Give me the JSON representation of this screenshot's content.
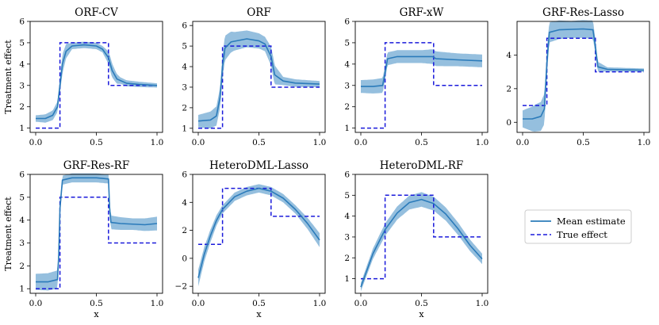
{
  "figure": {
    "legend": {
      "mean_label": "Mean estimate",
      "true_label": "True effect",
      "placement": "center-right"
    },
    "colors": {
      "mean": "#2b7bba",
      "band": "#8fbcdc",
      "true": "#1a1adb"
    }
  },
  "chart_data": [
    {
      "type": "line",
      "title": "ORF-CV",
      "xlabel": "",
      "ylabel": "Treatment effect",
      "xlim": [
        0,
        1
      ],
      "ylim": [
        0.8,
        6.0
      ],
      "xticks": [
        "0.0",
        "0.5",
        "1.0"
      ],
      "yticks": [
        1,
        2,
        3,
        4,
        5,
        6
      ],
      "mean": [
        [
          0,
          1.45
        ],
        [
          0.08,
          1.45
        ],
        [
          0.14,
          1.6
        ],
        [
          0.18,
          2.0
        ],
        [
          0.2,
          3.0
        ],
        [
          0.22,
          4.0
        ],
        [
          0.25,
          4.6
        ],
        [
          0.3,
          4.85
        ],
        [
          0.4,
          4.9
        ],
        [
          0.5,
          4.85
        ],
        [
          0.55,
          4.7
        ],
        [
          0.6,
          4.3
        ],
        [
          0.63,
          3.7
        ],
        [
          0.67,
          3.3
        ],
        [
          0.75,
          3.1
        ],
        [
          0.85,
          3.05
        ],
        [
          1,
          3.0
        ]
      ],
      "band_width": [
        [
          0,
          0.15
        ],
        [
          0.18,
          0.25
        ],
        [
          0.22,
          0.45
        ],
        [
          0.3,
          0.15
        ],
        [
          0.55,
          0.15
        ],
        [
          0.62,
          0.35
        ],
        [
          0.7,
          0.15
        ],
        [
          1,
          0.1
        ]
      ],
      "true_effect": [
        [
          0,
          1
        ],
        [
          0.2,
          1
        ],
        [
          0.2,
          5
        ],
        [
          0.6,
          5
        ],
        [
          0.6,
          3
        ],
        [
          1,
          3
        ]
      ]
    },
    {
      "type": "line",
      "title": "ORF",
      "xlabel": "",
      "ylabel": "",
      "xlim": [
        0,
        1
      ],
      "ylim": [
        0.8,
        6.2
      ],
      "xticks": [
        "0.0",
        "0.5",
        "1.0"
      ],
      "yticks": [
        1,
        2,
        3,
        4,
        5,
        6
      ],
      "mean": [
        [
          0,
          1.35
        ],
        [
          0.1,
          1.4
        ],
        [
          0.15,
          1.6
        ],
        [
          0.18,
          2.5
        ],
        [
          0.2,
          4.0
        ],
        [
          0.22,
          4.9
        ],
        [
          0.27,
          5.2
        ],
        [
          0.4,
          5.35
        ],
        [
          0.5,
          5.25
        ],
        [
          0.55,
          5.1
        ],
        [
          0.6,
          4.5
        ],
        [
          0.63,
          3.6
        ],
        [
          0.7,
          3.3
        ],
        [
          0.8,
          3.2
        ],
        [
          1,
          3.15
        ]
      ],
      "band_width": [
        [
          0,
          0.3
        ],
        [
          0.18,
          0.5
        ],
        [
          0.22,
          0.6
        ],
        [
          0.3,
          0.45
        ],
        [
          0.55,
          0.35
        ],
        [
          0.62,
          0.5
        ],
        [
          0.7,
          0.2
        ],
        [
          1,
          0.15
        ]
      ],
      "true_effect": [
        [
          0,
          1
        ],
        [
          0.2,
          1
        ],
        [
          0.2,
          5
        ],
        [
          0.6,
          5
        ],
        [
          0.6,
          3
        ],
        [
          1,
          3
        ]
      ]
    },
    {
      "type": "line",
      "title": "GRF-xW",
      "xlabel": "",
      "ylabel": "",
      "xlim": [
        0,
        1
      ],
      "ylim": [
        0.8,
        6.0
      ],
      "xticks": [
        "0.0",
        "0.5",
        "1.0"
      ],
      "yticks": [
        1,
        2,
        3,
        4,
        5,
        6
      ],
      "mean": [
        [
          0,
          2.95
        ],
        [
          0.1,
          2.95
        ],
        [
          0.18,
          3.0
        ],
        [
          0.2,
          3.6
        ],
        [
          0.22,
          4.25
        ],
        [
          0.3,
          4.35
        ],
        [
          0.5,
          4.35
        ],
        [
          0.59,
          4.35
        ],
        [
          0.62,
          4.25
        ],
        [
          0.8,
          4.2
        ],
        [
          1,
          4.15
        ]
      ],
      "band_width": [
        [
          0,
          0.3
        ],
        [
          0.18,
          0.35
        ],
        [
          0.22,
          0.3
        ],
        [
          0.5,
          0.3
        ],
        [
          0.6,
          0.35
        ],
        [
          0.8,
          0.3
        ],
        [
          1,
          0.3
        ]
      ],
      "true_effect": [
        [
          0,
          1
        ],
        [
          0.2,
          1
        ],
        [
          0.2,
          5
        ],
        [
          0.6,
          5
        ],
        [
          0.6,
          3
        ],
        [
          1,
          3
        ]
      ]
    },
    {
      "type": "line",
      "title": "GRF-Res-Lasso",
      "xlabel": "",
      "ylabel": "",
      "xlim": [
        0,
        1
      ],
      "ylim": [
        -0.6,
        6.0
      ],
      "xticks": [
        "0.0",
        "0.5",
        "1.0"
      ],
      "yticks": [
        0,
        2,
        4
      ],
      "mean": [
        [
          0,
          0.2
        ],
        [
          0.08,
          0.2
        ],
        [
          0.15,
          0.35
        ],
        [
          0.18,
          0.8
        ],
        [
          0.2,
          3.5
        ],
        [
          0.22,
          5.35
        ],
        [
          0.3,
          5.5
        ],
        [
          0.5,
          5.55
        ],
        [
          0.58,
          5.5
        ],
        [
          0.6,
          4.5
        ],
        [
          0.62,
          3.3
        ],
        [
          0.7,
          3.15
        ],
        [
          1,
          3.1
        ]
      ],
      "band_width": [
        [
          0,
          0.5
        ],
        [
          0.1,
          0.8
        ],
        [
          0.18,
          0.9
        ],
        [
          0.22,
          0.6
        ],
        [
          0.4,
          0.5
        ],
        [
          0.58,
          0.55
        ],
        [
          0.62,
          0.3
        ],
        [
          0.7,
          0.12
        ],
        [
          1,
          0.1
        ]
      ],
      "true_effect": [
        [
          0,
          1
        ],
        [
          0.2,
          1
        ],
        [
          0.2,
          5
        ],
        [
          0.6,
          5
        ],
        [
          0.6,
          3
        ],
        [
          1,
          3
        ]
      ]
    },
    {
      "type": "line",
      "title": "GRF-Res-RF",
      "xlabel": "x",
      "ylabel": "Treatment effect",
      "xlim": [
        0,
        1
      ],
      "ylim": [
        0.8,
        6.0
      ],
      "xticks": [
        "0.0",
        "0.5",
        "1.0"
      ],
      "yticks": [
        1,
        2,
        3,
        4,
        5,
        6
      ],
      "mean": [
        [
          0,
          1.3
        ],
        [
          0.1,
          1.3
        ],
        [
          0.18,
          1.4
        ],
        [
          0.19,
          2.5
        ],
        [
          0.2,
          4.5
        ],
        [
          0.22,
          5.75
        ],
        [
          0.3,
          5.85
        ],
        [
          0.5,
          5.85
        ],
        [
          0.6,
          5.8
        ],
        [
          0.61,
          4.5
        ],
        [
          0.62,
          3.9
        ],
        [
          0.7,
          3.85
        ],
        [
          0.9,
          3.8
        ],
        [
          1,
          3.85
        ]
      ],
      "band_width": [
        [
          0,
          0.35
        ],
        [
          0.18,
          0.4
        ],
        [
          0.22,
          0.2
        ],
        [
          0.6,
          0.2
        ],
        [
          0.62,
          0.3
        ],
        [
          0.8,
          0.25
        ],
        [
          1,
          0.3
        ]
      ],
      "true_effect": [
        [
          0,
          1
        ],
        [
          0.2,
          1
        ],
        [
          0.2,
          5
        ],
        [
          0.6,
          5
        ],
        [
          0.6,
          3
        ],
        [
          1,
          3
        ]
      ]
    },
    {
      "type": "line",
      "title": "HeteroDML-Lasso",
      "xlabel": "x",
      "ylabel": "",
      "xlim": [
        0,
        1
      ],
      "ylim": [
        -2.5,
        6.0
      ],
      "xticks": [
        "0.0",
        "0.5",
        "1.0"
      ],
      "yticks": [
        -2,
        0,
        2,
        4,
        6
      ],
      "mean": [
        [
          0,
          -1.4
        ],
        [
          0.05,
          0.3
        ],
        [
          0.1,
          1.6
        ],
        [
          0.15,
          2.7
        ],
        [
          0.2,
          3.5
        ],
        [
          0.3,
          4.4
        ],
        [
          0.4,
          4.8
        ],
        [
          0.5,
          5.0
        ],
        [
          0.6,
          4.8
        ],
        [
          0.7,
          4.3
        ],
        [
          0.8,
          3.5
        ],
        [
          0.9,
          2.5
        ],
        [
          1,
          1.3
        ]
      ],
      "band_width": [
        [
          0,
          0.6
        ],
        [
          0.2,
          0.3
        ],
        [
          0.5,
          0.3
        ],
        [
          0.8,
          0.3
        ],
        [
          1,
          0.5
        ]
      ],
      "true_effect": [
        [
          0,
          1
        ],
        [
          0.2,
          1
        ],
        [
          0.2,
          5
        ],
        [
          0.6,
          5
        ],
        [
          0.6,
          3
        ],
        [
          1,
          3
        ]
      ]
    },
    {
      "type": "line",
      "title": "HeteroDML-RF",
      "xlabel": "x",
      "ylabel": "",
      "xlim": [
        0,
        1
      ],
      "ylim": [
        0.3,
        6.0
      ],
      "xticks": [
        "0.0",
        "0.5",
        "1.0"
      ],
      "yticks": [
        1,
        2,
        3,
        4,
        5,
        6
      ],
      "mean": [
        [
          0,
          0.6
        ],
        [
          0.1,
          2.2
        ],
        [
          0.2,
          3.35
        ],
        [
          0.3,
          4.15
        ],
        [
          0.4,
          4.65
        ],
        [
          0.5,
          4.8
        ],
        [
          0.6,
          4.6
        ],
        [
          0.7,
          4.1
        ],
        [
          0.8,
          3.4
        ],
        [
          0.9,
          2.6
        ],
        [
          1,
          1.95
        ]
      ],
      "band_width": [
        [
          0,
          0.2
        ],
        [
          0.2,
          0.3
        ],
        [
          0.5,
          0.35
        ],
        [
          0.8,
          0.3
        ],
        [
          1,
          0.25
        ]
      ],
      "true_effect": [
        [
          0,
          1
        ],
        [
          0.2,
          1
        ],
        [
          0.2,
          5
        ],
        [
          0.6,
          5
        ],
        [
          0.6,
          3
        ],
        [
          1,
          3
        ]
      ]
    }
  ]
}
